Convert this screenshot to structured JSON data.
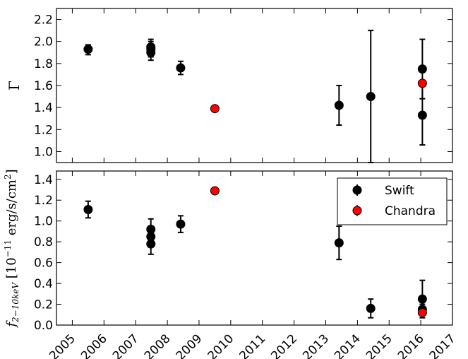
{
  "chart_data": [
    {
      "type": "scatter",
      "title": "",
      "ylabel": "Γ",
      "xlim": [
        2004.5,
        2017
      ],
      "ylim": [
        0.9,
        2.3
      ],
      "xticks": [
        2005,
        2006,
        2007,
        2008,
        2009,
        2010,
        2011,
        2012,
        2013,
        2014,
        2015,
        2016,
        2017
      ],
      "xtick_labels_visible": false,
      "yticks": [
        1.0,
        1.2,
        1.4,
        1.6,
        1.8,
        2.0,
        2.2
      ],
      "ytick_labels": [
        "1.0",
        "1.2",
        "1.4",
        "1.6",
        "1.8",
        "2.0",
        "2.2"
      ],
      "grid": false,
      "series": [
        {
          "name": "Swift",
          "color": "#000000",
          "points": [
            {
              "x": 2005.5,
              "y": 1.93,
              "yerr": [
                0.05,
                0.04
              ]
            },
            {
              "x": 2007.48,
              "y": 1.95,
              "yerr": [
                0.07,
                0.07
              ]
            },
            {
              "x": 2007.48,
              "y": 1.93,
              "yerr": [
                0.07,
                0.07
              ]
            },
            {
              "x": 2007.48,
              "y": 1.9,
              "yerr": [
                0.07,
                0.07
              ]
            },
            {
              "x": 2008.42,
              "y": 1.76,
              "yerr": [
                0.06,
                0.06
              ]
            },
            {
              "x": 2013.42,
              "y": 1.42,
              "yerr": [
                0.18,
                0.18
              ]
            },
            {
              "x": 2014.42,
              "y": 1.5,
              "yerr": [
                0.6,
                0.6
              ]
            },
            {
              "x": 2016.05,
              "y": 1.75,
              "yerr": [
                0.27,
                0.27
              ]
            },
            {
              "x": 2016.05,
              "y": 1.33,
              "yerr": [
                0.27,
                0.27
              ]
            }
          ]
        },
        {
          "name": "Chandra",
          "color": "#ff0000",
          "points": [
            {
              "x": 2009.5,
              "y": 1.39,
              "yerr": [
                0.0,
                0.0
              ]
            },
            {
              "x": 2016.05,
              "y": 1.62,
              "yerr": [
                0.0,
                0.0
              ]
            }
          ]
        }
      ]
    },
    {
      "type": "scatter",
      "title": "",
      "ylabel": "f_2-10keV [10^-11 erg/s/cm^2]",
      "ylabel_main": "f",
      "ylabel_sub": "2−10keV",
      "ylabel_bracket": " [10",
      "ylabel_exp": "−11",
      "ylabel_units": " erg/s/cm",
      "ylabel_units_exp": "2",
      "ylabel_close": "]",
      "xlim": [
        2004.5,
        2017
      ],
      "ylim": [
        0.0,
        1.48
      ],
      "xticks": [
        2005,
        2006,
        2007,
        2008,
        2009,
        2010,
        2011,
        2012,
        2013,
        2014,
        2015,
        2016,
        2017
      ],
      "xtick_labels": [
        "2005",
        "2006",
        "2007",
        "2008",
        "2009",
        "2010",
        "2011",
        "2012",
        "2013",
        "2014",
        "2015",
        "2016",
        "2017"
      ],
      "yticks": [
        0.0,
        0.2,
        0.4,
        0.6,
        0.8,
        1.0,
        1.2,
        1.4
      ],
      "ytick_labels": [
        "0.0",
        "0.2",
        "0.4",
        "0.6",
        "0.8",
        "1.0",
        "1.2",
        "1.4"
      ],
      "grid": false,
      "legend": {
        "position": "top-right",
        "entries": [
          {
            "label": "Swift",
            "color": "#000000"
          },
          {
            "label": "Chandra",
            "color": "#ff0000"
          }
        ]
      },
      "series": [
        {
          "name": "Swift",
          "color": "#000000",
          "points": [
            {
              "x": 2005.5,
              "y": 1.11,
              "yerr": [
                0.08,
                0.08
              ]
            },
            {
              "x": 2007.48,
              "y": 0.92,
              "yerr": [
                0.1,
                0.1
              ]
            },
            {
              "x": 2007.48,
              "y": 0.85,
              "yerr": [
                0.1,
                0.1
              ]
            },
            {
              "x": 2007.48,
              "y": 0.78,
              "yerr": [
                0.1,
                0.1
              ]
            },
            {
              "x": 2008.42,
              "y": 0.97,
              "yerr": [
                0.08,
                0.08
              ]
            },
            {
              "x": 2013.42,
              "y": 0.79,
              "yerr": [
                0.16,
                0.16
              ]
            },
            {
              "x": 2014.42,
              "y": 0.16,
              "yerr": [
                0.09,
                0.09
              ]
            },
            {
              "x": 2016.05,
              "y": 0.25,
              "yerr": [
                0.18,
                0.18
              ]
            },
            {
              "x": 2016.05,
              "y": 0.15,
              "yerr": [
                0.05,
                0.05
              ]
            }
          ]
        },
        {
          "name": "Chandra",
          "color": "#ff0000",
          "points": [
            {
              "x": 2009.5,
              "y": 1.29,
              "yerr": [
                0.0,
                0.0
              ]
            },
            {
              "x": 2016.05,
              "y": 0.12,
              "yerr": [
                0.02,
                0.02
              ]
            }
          ]
        }
      ]
    }
  ]
}
